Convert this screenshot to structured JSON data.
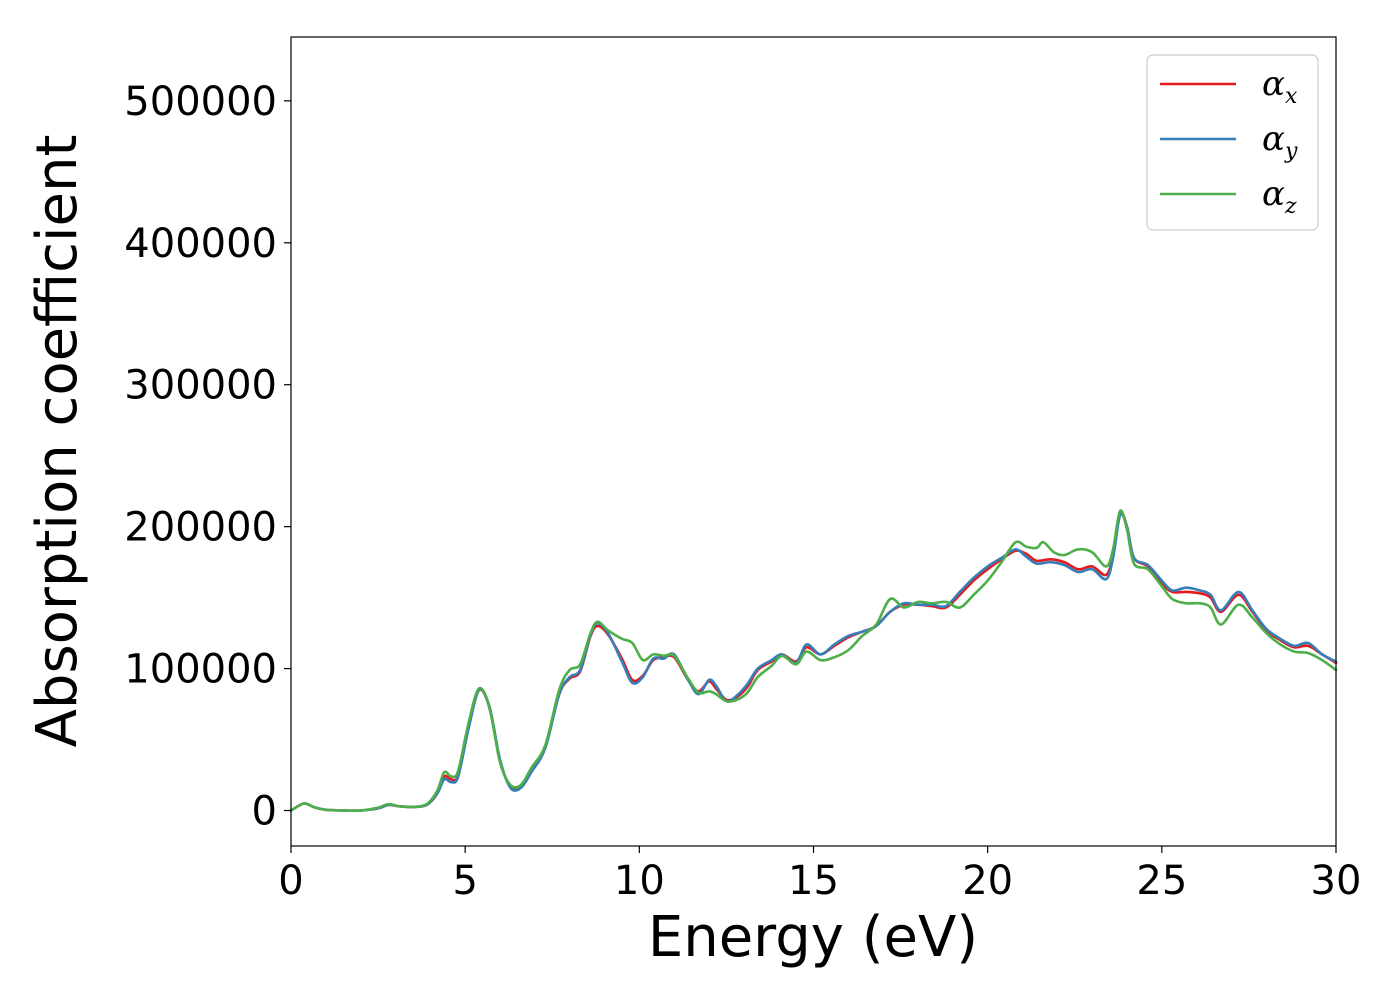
{
  "chart_data": {
    "type": "line",
    "xlabel": "Energy (eV)",
    "ylabel": "Absorption coefficient",
    "xlim": [
      0,
      30
    ],
    "ylim": [
      -25000,
      545000
    ],
    "xticks": [
      0,
      5,
      10,
      15,
      20,
      25,
      30
    ],
    "yticks": [
      0,
      100000,
      200000,
      300000,
      400000,
      500000
    ],
    "xtick_labels": [
      "0",
      "5",
      "10",
      "15",
      "20",
      "25",
      "30"
    ],
    "ytick_labels": [
      "0",
      "100000",
      "200000",
      "300000",
      "400000",
      "500000"
    ],
    "grid": false,
    "legend_position": "top-right",
    "series": [
      {
        "name": "αx",
        "name_base": "α",
        "name_sub": "x",
        "color": "#e41a1c",
        "points": [
          [
            0,
            0
          ],
          [
            0.2,
            3000
          ],
          [
            0.4,
            5000
          ],
          [
            0.7,
            2000
          ],
          [
            1,
            500
          ],
          [
            1.5,
            0
          ],
          [
            2,
            0
          ],
          [
            2.5,
            1500
          ],
          [
            2.8,
            4000
          ],
          [
            3.1,
            3000
          ],
          [
            3.5,
            2500
          ],
          [
            3.9,
            4000
          ],
          [
            4.2,
            12000
          ],
          [
            4.4,
            24000
          ],
          [
            4.6,
            22000
          ],
          [
            4.8,
            25000
          ],
          [
            5.1,
            60000
          ],
          [
            5.4,
            85000
          ],
          [
            5.7,
            72000
          ],
          [
            6,
            35000
          ],
          [
            6.3,
            17000
          ],
          [
            6.6,
            17000
          ],
          [
            6.9,
            28000
          ],
          [
            7.3,
            45000
          ],
          [
            7.7,
            82000
          ],
          [
            8,
            93000
          ],
          [
            8.3,
            98000
          ],
          [
            8.6,
            123000
          ],
          [
            8.8,
            130000
          ],
          [
            9.1,
            124000
          ],
          [
            9.5,
            107000
          ],
          [
            9.8,
            92000
          ],
          [
            10.1,
            95000
          ],
          [
            10.4,
            106000
          ],
          [
            10.7,
            108000
          ],
          [
            11,
            108000
          ],
          [
            11.4,
            92000
          ],
          [
            11.7,
            84000
          ],
          [
            12,
            91000
          ],
          [
            12.2,
            86000
          ],
          [
            12.5,
            78000
          ],
          [
            12.8,
            80000
          ],
          [
            13.1,
            87000
          ],
          [
            13.4,
            99000
          ],
          [
            13.8,
            105000
          ],
          [
            14.1,
            110000
          ],
          [
            14.5,
            105000
          ],
          [
            14.8,
            115000
          ],
          [
            15.2,
            110000
          ],
          [
            15.6,
            116000
          ],
          [
            16,
            122000
          ],
          [
            16.4,
            126000
          ],
          [
            16.8,
            130000
          ],
          [
            17.2,
            140000
          ],
          [
            17.6,
            145000
          ],
          [
            18,
            145000
          ],
          [
            18.4,
            144000
          ],
          [
            18.8,
            143000
          ],
          [
            19.2,
            152000
          ],
          [
            19.6,
            162000
          ],
          [
            20,
            170000
          ],
          [
            20.4,
            177000
          ],
          [
            20.8,
            183000
          ],
          [
            21.1,
            181000
          ],
          [
            21.4,
            176000
          ],
          [
            21.8,
            177000
          ],
          [
            22.2,
            175000
          ],
          [
            22.6,
            170000
          ],
          [
            23,
            172000
          ],
          [
            23.4,
            166000
          ],
          [
            23.6,
            180000
          ],
          [
            23.8,
            209000
          ],
          [
            24,
            200000
          ],
          [
            24.2,
            178000
          ],
          [
            24.6,
            172000
          ],
          [
            25,
            160000
          ],
          [
            25.3,
            154000
          ],
          [
            25.7,
            154000
          ],
          [
            26.1,
            153000
          ],
          [
            26.4,
            150000
          ],
          [
            26.7,
            140000
          ],
          [
            27.2,
            152000
          ],
          [
            27.6,
            140000
          ],
          [
            28,
            127000
          ],
          [
            28.4,
            120000
          ],
          [
            28.8,
            115000
          ],
          [
            29.2,
            116000
          ],
          [
            29.6,
            110000
          ],
          [
            30,
            104000
          ]
        ]
      },
      {
        "name": "αy",
        "name_base": "α",
        "name_sub": "y",
        "color": "#377eb8",
        "points": [
          [
            0,
            0
          ],
          [
            0.2,
            3000
          ],
          [
            0.4,
            5000
          ],
          [
            0.7,
            2000
          ],
          [
            1,
            500
          ],
          [
            1.5,
            0
          ],
          [
            2,
            0
          ],
          [
            2.5,
            1500
          ],
          [
            2.8,
            4000
          ],
          [
            3.1,
            3000
          ],
          [
            3.5,
            2500
          ],
          [
            3.9,
            4000
          ],
          [
            4.2,
            12000
          ],
          [
            4.4,
            22000
          ],
          [
            4.6,
            20000
          ],
          [
            4.8,
            24000
          ],
          [
            5.1,
            58000
          ],
          [
            5.4,
            85000
          ],
          [
            5.7,
            73000
          ],
          [
            6,
            36000
          ],
          [
            6.3,
            16000
          ],
          [
            6.6,
            16000
          ],
          [
            6.9,
            27000
          ],
          [
            7.3,
            44000
          ],
          [
            7.7,
            82000
          ],
          [
            8,
            94000
          ],
          [
            8.3,
            99000
          ],
          [
            8.6,
            124000
          ],
          [
            8.8,
            132000
          ],
          [
            9.1,
            125000
          ],
          [
            9.5,
            105000
          ],
          [
            9.8,
            90000
          ],
          [
            10.1,
            94000
          ],
          [
            10.4,
            107000
          ],
          [
            10.7,
            107000
          ],
          [
            11,
            110000
          ],
          [
            11.4,
            92000
          ],
          [
            11.7,
            82000
          ],
          [
            12,
            92000
          ],
          [
            12.2,
            88000
          ],
          [
            12.5,
            77000
          ],
          [
            12.8,
            81000
          ],
          [
            13.1,
            89000
          ],
          [
            13.4,
            100000
          ],
          [
            13.8,
            106000
          ],
          [
            14.1,
            110000
          ],
          [
            14.5,
            104000
          ],
          [
            14.8,
            117000
          ],
          [
            15.2,
            110000
          ],
          [
            15.6,
            117000
          ],
          [
            16,
            123000
          ],
          [
            16.4,
            126000
          ],
          [
            16.8,
            130000
          ],
          [
            17.2,
            140000
          ],
          [
            17.6,
            146000
          ],
          [
            18,
            145000
          ],
          [
            18.4,
            145000
          ],
          [
            18.8,
            144000
          ],
          [
            19.2,
            154000
          ],
          [
            19.6,
            164000
          ],
          [
            20,
            172000
          ],
          [
            20.4,
            178000
          ],
          [
            20.8,
            184000
          ],
          [
            21.1,
            179000
          ],
          [
            21.4,
            174000
          ],
          [
            21.8,
            175000
          ],
          [
            22.2,
            173000
          ],
          [
            22.6,
            168000
          ],
          [
            23,
            170000
          ],
          [
            23.4,
            163000
          ],
          [
            23.6,
            178000
          ],
          [
            23.8,
            208000
          ],
          [
            24,
            200000
          ],
          [
            24.2,
            178000
          ],
          [
            24.6,
            173000
          ],
          [
            25,
            162000
          ],
          [
            25.3,
            155000
          ],
          [
            25.7,
            157000
          ],
          [
            26.1,
            155000
          ],
          [
            26.4,
            152000
          ],
          [
            26.7,
            141000
          ],
          [
            27.2,
            154000
          ],
          [
            27.6,
            141000
          ],
          [
            28,
            128000
          ],
          [
            28.4,
            121000
          ],
          [
            28.8,
            116000
          ],
          [
            29.2,
            118000
          ],
          [
            29.6,
            110000
          ],
          [
            30,
            105000
          ]
        ]
      },
      {
        "name": "αz",
        "name_base": "α",
        "name_sub": "z",
        "color": "#4daf4a",
        "points": [
          [
            0,
            0
          ],
          [
            0.2,
            3000
          ],
          [
            0.4,
            5000
          ],
          [
            0.7,
            2000
          ],
          [
            1,
            500
          ],
          [
            1.5,
            0
          ],
          [
            2,
            0
          ],
          [
            2.5,
            2000
          ],
          [
            2.8,
            4500
          ],
          [
            3.1,
            3000
          ],
          [
            3.5,
            2500
          ],
          [
            3.9,
            4500
          ],
          [
            4.2,
            14000
          ],
          [
            4.4,
            27000
          ],
          [
            4.6,
            24000
          ],
          [
            4.8,
            28000
          ],
          [
            5.1,
            62000
          ],
          [
            5.4,
            86000
          ],
          [
            5.7,
            72000
          ],
          [
            6,
            34000
          ],
          [
            6.3,
            18000
          ],
          [
            6.6,
            18000
          ],
          [
            6.9,
            30000
          ],
          [
            7.3,
            46000
          ],
          [
            7.7,
            85000
          ],
          [
            8,
            99000
          ],
          [
            8.3,
            103000
          ],
          [
            8.6,
            125000
          ],
          [
            8.8,
            133000
          ],
          [
            9.1,
            127000
          ],
          [
            9.5,
            121000
          ],
          [
            9.8,
            118000
          ],
          [
            10.1,
            106000
          ],
          [
            10.4,
            110000
          ],
          [
            10.7,
            109000
          ],
          [
            11,
            109000
          ],
          [
            11.4,
            93000
          ],
          [
            11.7,
            83000
          ],
          [
            12,
            84000
          ],
          [
            12.2,
            82000
          ],
          [
            12.5,
            77000
          ],
          [
            12.8,
            78000
          ],
          [
            13.1,
            83000
          ],
          [
            13.4,
            94000
          ],
          [
            13.8,
            102000
          ],
          [
            14.1,
            109000
          ],
          [
            14.5,
            103000
          ],
          [
            14.8,
            112000
          ],
          [
            15.2,
            106000
          ],
          [
            15.6,
            108000
          ],
          [
            16,
            113000
          ],
          [
            16.4,
            123000
          ],
          [
            16.8,
            131000
          ],
          [
            17.2,
            149000
          ],
          [
            17.6,
            143000
          ],
          [
            18,
            147000
          ],
          [
            18.4,
            146000
          ],
          [
            18.8,
            147000
          ],
          [
            19.2,
            143000
          ],
          [
            19.6,
            152000
          ],
          [
            20,
            162000
          ],
          [
            20.4,
            175000
          ],
          [
            20.8,
            189000
          ],
          [
            21.1,
            186000
          ],
          [
            21.4,
            185000
          ],
          [
            21.6,
            189000
          ],
          [
            21.9,
            182000
          ],
          [
            22.2,
            180000
          ],
          [
            22.6,
            184000
          ],
          [
            23,
            182000
          ],
          [
            23.4,
            172000
          ],
          [
            23.6,
            184000
          ],
          [
            23.8,
            211000
          ],
          [
            24,
            198000
          ],
          [
            24.2,
            174000
          ],
          [
            24.6,
            170000
          ],
          [
            25,
            158000
          ],
          [
            25.3,
            149000
          ],
          [
            25.7,
            146000
          ],
          [
            26.1,
            146000
          ],
          [
            26.4,
            143000
          ],
          [
            26.7,
            131000
          ],
          [
            27.2,
            145000
          ],
          [
            27.6,
            136000
          ],
          [
            28,
            125000
          ],
          [
            28.4,
            117000
          ],
          [
            28.8,
            112000
          ],
          [
            29.2,
            111000
          ],
          [
            29.6,
            106000
          ],
          [
            30,
            99000
          ]
        ]
      }
    ]
  }
}
